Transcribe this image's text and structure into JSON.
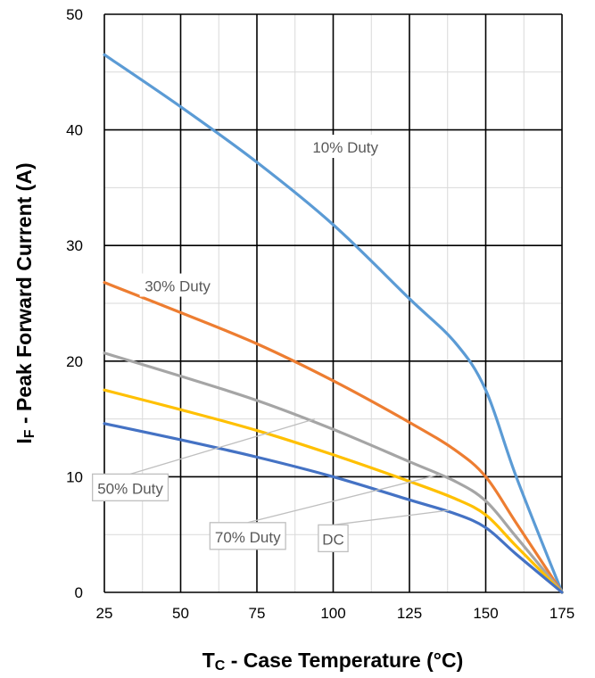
{
  "chart_data": {
    "type": "line",
    "xlabel_main": "T",
    "xlabel_sub": "C",
    "xlabel_rest": " - Case Temperature (°C)",
    "ylabel_main": "I",
    "ylabel_sub": "F",
    "ylabel_rest": " - Peak Forward Current (A)",
    "xlim": [
      25,
      175
    ],
    "ylim": [
      0,
      50
    ],
    "x_ticks": [
      "25",
      "50",
      "75",
      "100",
      "125",
      "150",
      "175"
    ],
    "y_ticks": [
      "0",
      "10",
      "20",
      "30",
      "40",
      "50"
    ],
    "grid": true,
    "series": [
      {
        "name": "10% Duty",
        "color": "#5B9BD5",
        "x": [
          25,
          50,
          75,
          100,
          125,
          140,
          150,
          160,
          175
        ],
        "y": [
          46.5,
          42,
          37.2,
          31.8,
          25.4,
          21.6,
          17.5,
          10,
          0
        ]
      },
      {
        "name": "30% Duty",
        "color": "#ED7D31",
        "x": [
          25,
          50,
          75,
          100,
          125,
          140,
          150,
          160,
          175
        ],
        "y": [
          26.8,
          24.2,
          21.5,
          18.3,
          14.7,
          12.3,
          10,
          6,
          0
        ]
      },
      {
        "name": "50% Duty",
        "color": "#A5A5A5",
        "x": [
          25,
          50,
          75,
          100,
          125,
          140,
          150,
          160,
          175
        ],
        "y": [
          20.7,
          18.7,
          16.6,
          14.1,
          11.3,
          9.6,
          7.9,
          4.8,
          0
        ]
      },
      {
        "name": "70% Duty",
        "color": "#FFC000",
        "x": [
          25,
          50,
          75,
          100,
          125,
          140,
          150,
          160,
          175
        ],
        "y": [
          17.5,
          15.8,
          14,
          11.9,
          9.6,
          8.1,
          6.7,
          4,
          0
        ]
      },
      {
        "name": "DC",
        "color": "#4472C4",
        "x": [
          25,
          50,
          75,
          100,
          125,
          140,
          150,
          160,
          175
        ],
        "y": [
          14.6,
          13.2,
          11.7,
          10,
          8,
          6.8,
          5.6,
          3.3,
          0
        ]
      }
    ],
    "annotations": [
      {
        "text": "10% Duty",
        "x": 104,
        "y": 38.5,
        "boxed": false
      },
      {
        "text": "30% Duty",
        "x": 49,
        "y": 26.5,
        "boxed": false
      },
      {
        "text": "50% Duty",
        "x": 33.5,
        "y": 9.0,
        "boxed": true,
        "pointer": {
          "x": 94,
          "y": 15
        }
      },
      {
        "text": "70% Duty",
        "x": 72,
        "y": 4.8,
        "boxed": true,
        "pointer": {
          "x": 135,
          "y": 10.2
        }
      },
      {
        "text": "DC",
        "x": 100,
        "y": 4.6,
        "boxed": true,
        "pointer": {
          "x": 138,
          "y": 7.1
        }
      }
    ]
  }
}
